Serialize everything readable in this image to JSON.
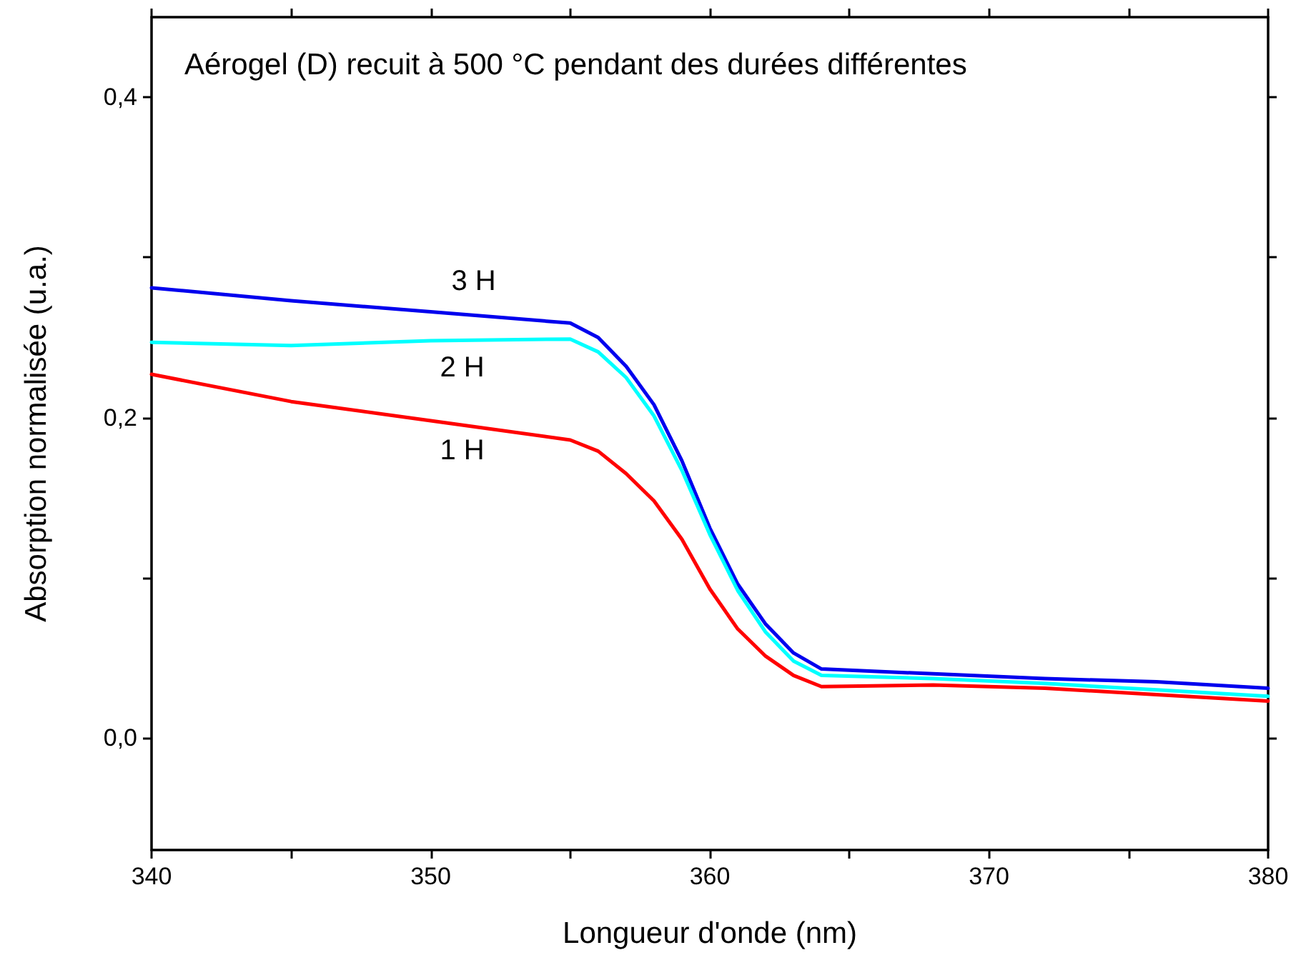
{
  "chart_data": {
    "type": "line",
    "title": "Aérogel (D) recuit à 500 °C pendant des durées différentes",
    "xlabel": "Longueur d'onde (nm)",
    "ylabel": "Absorption normalisée (u.a.)",
    "x": [
      340,
      345,
      350,
      355,
      356,
      357,
      358,
      359,
      360,
      361,
      362,
      363,
      364,
      368,
      372,
      376,
      380
    ],
    "series": [
      {
        "name": "3 H",
        "color": "#0000ee",
        "values": [
          0.281,
          0.273,
          0.266,
          0.259,
          0.25,
          0.232,
          0.208,
          0.173,
          0.131,
          0.096,
          0.071,
          0.053,
          0.043,
          0.04,
          0.037,
          0.035,
          0.031
        ]
      },
      {
        "name": "2 H",
        "color": "#00ffff",
        "values": [
          0.247,
          0.245,
          0.248,
          0.249,
          0.241,
          0.225,
          0.201,
          0.167,
          0.127,
          0.092,
          0.066,
          0.048,
          0.039,
          0.037,
          0.034,
          0.03,
          0.026
        ]
      },
      {
        "name": "1 H",
        "color": "#ff0000",
        "values": [
          0.227,
          0.21,
          0.198,
          0.186,
          0.179,
          0.165,
          0.148,
          0.124,
          0.093,
          0.068,
          0.051,
          0.039,
          0.032,
          0.033,
          0.031,
          0.027,
          0.023
        ]
      }
    ],
    "xlim": [
      340,
      380
    ],
    "xticks": [
      340,
      {
        "value": 345,
        "label": null
      },
      350,
      {
        "value": 355,
        "label": null
      },
      360,
      {
        "value": 365,
        "label": null
      },
      370,
      {
        "value": 375,
        "label": null
      },
      380
    ],
    "ylim": [
      -0.07,
      0.45
    ],
    "yticks": [
      {
        "value": 0,
        "label": "0,0"
      },
      {
        "value": 0.1,
        "label": null
      },
      {
        "value": 0.2,
        "label": "0,2"
      },
      {
        "value": 0.3,
        "label": null
      },
      {
        "value": 0.4,
        "label": "0,4"
      }
    ],
    "grid": false,
    "legend": false,
    "marker": "none",
    "line_style": "solid"
  }
}
